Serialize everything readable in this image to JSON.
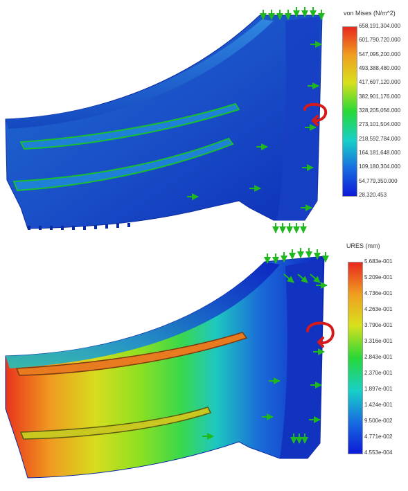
{
  "stress_plot": {
    "legend_title": "von Mises (N/m^2)",
    "tick_labels": [
      "658,191,304.000",
      "601,790,720.000",
      "547,095,200.000",
      "493,388,480.000",
      "417,697,120.000",
      "382,901,176.000",
      "328,205,056.000",
      "273,101,504.000",
      "218,592,784.000",
      "164,181,648.000",
      "109,180,304.000",
      "54,779,350.000",
      "28,320.453"
    ],
    "colors": {
      "max": "#e8281e",
      "high": "#f0a020",
      "mid_high": "#d8e01c",
      "mid": "#28d838",
      "mid_low": "#18d0c8",
      "low": "#1870e0",
      "min": "#0c1ad8"
    }
  },
  "displacement_plot": {
    "legend_title": "URES (mm)",
    "tick_labels": [
      "5.683e-001",
      "5.209e-001",
      "4.736e-001",
      "4.263e-001",
      "3.790e-001",
      "3.316e-001",
      "2.843e-001",
      "2.370e-001",
      "1.897e-001",
      "1.424e-001",
      "9.500e-002",
      "4.771e-002",
      "4.553e-004"
    ],
    "colors": {
      "max": "#e8281e",
      "high": "#f0a020",
      "mid_high": "#d8e01c",
      "mid": "#28d838",
      "mid_low": "#18d0c8",
      "low": "#1870e0",
      "min": "#0c1ad8"
    }
  },
  "icons": {
    "fixture": "green-arrow-icon",
    "torque": "red-curved-arrow-icon"
  }
}
